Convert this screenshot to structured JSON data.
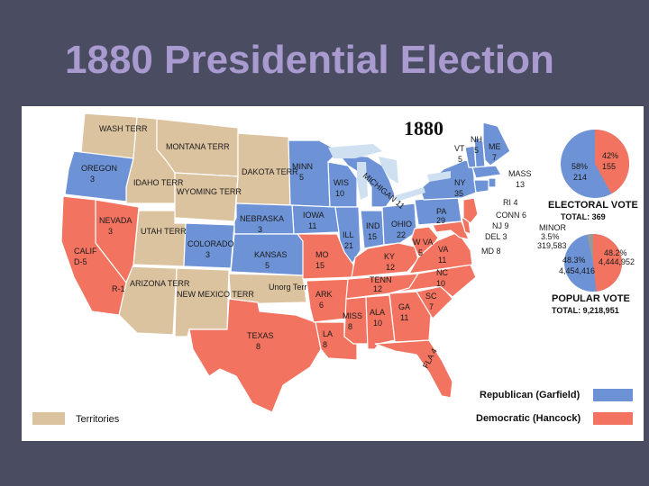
{
  "slide": {
    "title": "1880 Presidential Election"
  },
  "map": {
    "year": "1880",
    "colors": {
      "republican": "#6d93d6",
      "democratic": "#f27360",
      "territory": "#dcc3a0",
      "lake": "#cfe0f1",
      "border": "#ffffff"
    },
    "labels": {
      "wash": "WASH TERR",
      "oregon": "OREGON",
      "oregon_ev": "3",
      "idaho": "IDAHO TERR",
      "montana": "MONTANA TERR",
      "wyoming": "WYOMING TERR",
      "dakota": "DAKOTA TERR",
      "minn": "MINN",
      "minn_ev": "5",
      "wis": "WIS",
      "wis_ev": "10",
      "mich": "MICHIGAN 11",
      "iowa": "IOWA",
      "iowa_ev": "11",
      "nebraska": "NEBRASKA",
      "nebraska_ev": "3",
      "nevada": "NEVADA",
      "nevada_ev": "3",
      "utah": "UTAH TERR",
      "colorado": "COLORADO",
      "colorado_ev": "3",
      "kansas": "KANSAS",
      "kansas_ev": "5",
      "calif": "CALIF",
      "calif_ev": "D-5",
      "r1": "R-1",
      "arizona": "ARIZONA TERR",
      "newmexico": "NEW MEXICO TERR",
      "unorg": "Unorg Terr",
      "texas": "TEXAS",
      "texas_ev": "8",
      "mo": "MO",
      "mo_ev": "15",
      "ill": "ILL",
      "ill_ev": "21",
      "ind": "IND",
      "ind_ev": "15",
      "ohio": "OHIO",
      "ohio_ev": "22",
      "ark": "ARK",
      "ark_ev": "6",
      "la": "LA",
      "la_ev": "8",
      "miss": "MISS",
      "miss_ev": "8",
      "ala": "ALA",
      "ala_ev": "10",
      "ga": "GA",
      "ga_ev": "11",
      "fla": "FLA 4",
      "tenn": "TENN",
      "tenn_ev": "12",
      "ky": "KY",
      "ky_ev": "12",
      "wva": "W VA",
      "wva_ev": "5",
      "va": "VA",
      "va_ev": "11",
      "nc": "NC",
      "nc_ev": "10",
      "sc": "SC",
      "sc_ev": "7",
      "pa": "PA",
      "pa_ev": "29",
      "ny": "NY",
      "ny_ev": "35",
      "vt": "VT",
      "vt_ev": "5",
      "nh": "NH",
      "nh_ev": "5",
      "me": "ME",
      "me_ev": "7",
      "mass": "MASS",
      "mass_ev": "13",
      "ri": "RI 4",
      "conn": "CONN 6",
      "nj": "NJ 9",
      "del": "DEL 3",
      "md": "MD 8"
    }
  },
  "electoral": {
    "dem_pct": "42%",
    "dem_votes": "155",
    "rep_pct": "58%",
    "rep_votes": "214",
    "dem_fraction": 0.42,
    "title": "ELECTORAL VOTE",
    "total": "TOTAL: 369"
  },
  "popular": {
    "minor_label": "MINOR",
    "minor_pct": "3.5%",
    "minor_votes": "319,583",
    "rep_pct": "48.3%",
    "rep_votes": "4,454,416",
    "dem_pct": "48.2%",
    "dem_votes": "4,444,952",
    "dem_fraction": 0.482,
    "rep_fraction": 0.483,
    "minor_fraction": 0.035,
    "title": "POPULAR VOTE",
    "total": "TOTAL: 9,218,951"
  },
  "legend": {
    "republican": "Republican (Garfield)",
    "democratic": "Democratic (Hancock)",
    "territories": "Territories"
  }
}
